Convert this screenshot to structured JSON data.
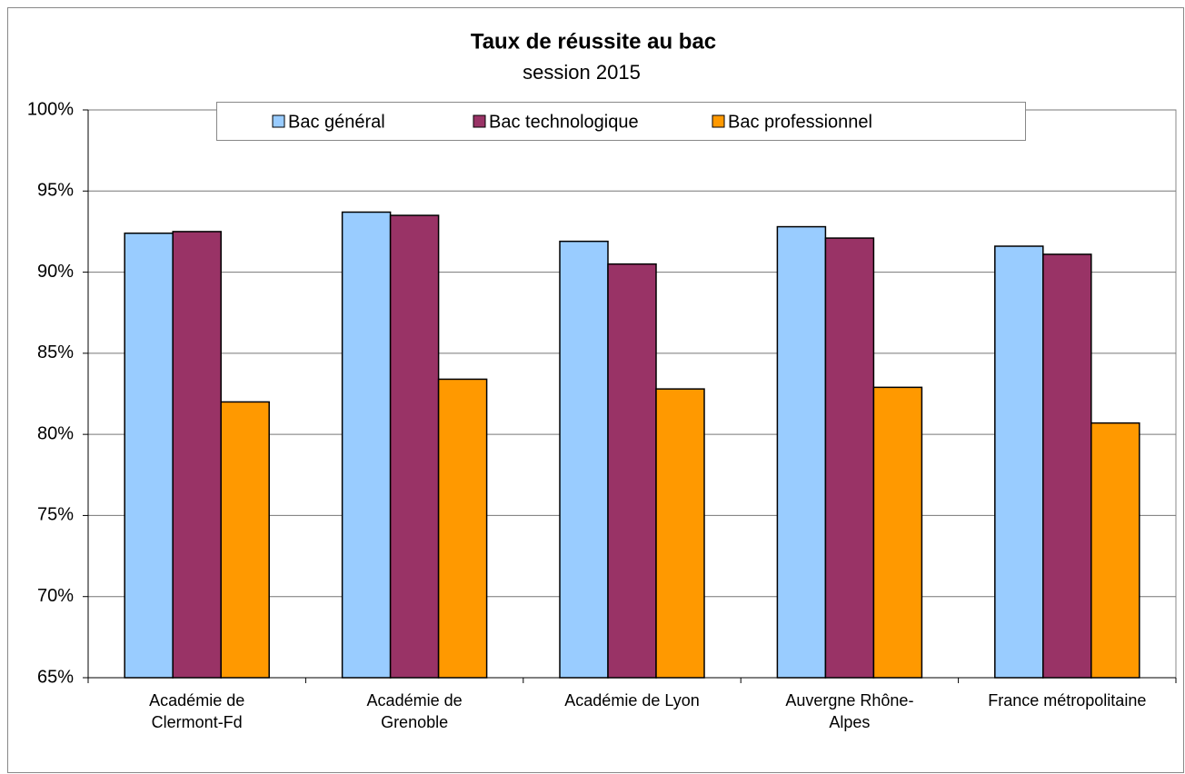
{
  "chart_data": {
    "type": "bar",
    "title": "Taux de réussite au bac",
    "subtitle": "session 2015",
    "categories": [
      "Académie de\nClermont-Fd",
      "Académie de\nGrenoble",
      "Académie de Lyon",
      "Auvergne Rhône-\nAlpes",
      "France métropolitaine"
    ],
    "series": [
      {
        "name": "Bac général",
        "color": "#99ccff",
        "values": [
          92.4,
          93.7,
          91.9,
          92.8,
          91.6
        ]
      },
      {
        "name": "Bac technologique",
        "color": "#993366",
        "values": [
          92.5,
          93.5,
          90.5,
          92.1,
          91.1
        ]
      },
      {
        "name": "Bac professionnel",
        "color": "#ff9900",
        "values": [
          82.0,
          83.4,
          82.8,
          82.9,
          80.7
        ]
      }
    ],
    "ylim": [
      65,
      100
    ],
    "yticks": [
      {
        "value": 65,
        "label": "65%"
      },
      {
        "value": 70,
        "label": "70%"
      },
      {
        "value": 75,
        "label": "75%"
      },
      {
        "value": 80,
        "label": "80%"
      },
      {
        "value": 85,
        "label": "85%"
      },
      {
        "value": 90,
        "label": "90%"
      },
      {
        "value": 95,
        "label": "95%"
      },
      {
        "value": 100,
        "label": "100%"
      }
    ],
    "grid": true,
    "legend": "top"
  }
}
